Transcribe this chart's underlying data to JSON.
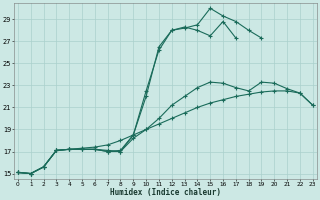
{
  "xlabel": "Humidex (Indice chaleur)",
  "bg_color": "#cce8e4",
  "grid_color": "#aad0cc",
  "line_color": "#1a6b5a",
  "xlim": [
    -0.3,
    23.3
  ],
  "ylim": [
    14.5,
    30.5
  ],
  "xtick_vals": [
    0,
    1,
    2,
    3,
    4,
    5,
    6,
    7,
    8,
    9,
    10,
    11,
    12,
    13,
    14,
    15,
    16,
    17,
    18,
    19,
    20,
    21,
    22,
    23
  ],
  "ytick_vals": [
    15,
    17,
    19,
    21,
    23,
    25,
    27,
    29
  ],
  "series": [
    {
      "x": [
        0,
        1,
        2,
        3,
        4,
        5,
        6,
        7,
        8,
        9,
        10,
        11,
        12,
        13,
        14,
        15,
        16,
        17,
        18,
        19
      ],
      "y": [
        15.1,
        15.0,
        15.6,
        17.1,
        17.2,
        17.2,
        17.2,
        17.1,
        17.0,
        18.5,
        22.0,
        26.5,
        28.0,
        28.2,
        28.5,
        30.0,
        29.3,
        28.8,
        28.0,
        27.3
      ]
    },
    {
      "x": [
        0,
        1,
        2,
        3,
        4,
        5,
        6,
        7,
        8,
        9,
        10,
        11,
        12,
        13,
        14,
        15,
        16,
        17
      ],
      "y": [
        15.1,
        15.0,
        15.6,
        17.1,
        17.2,
        17.2,
        17.2,
        17.0,
        17.1,
        18.5,
        22.5,
        26.2,
        28.0,
        28.3,
        28.0,
        27.5,
        28.8,
        27.3
      ]
    },
    {
      "x": [
        0,
        1,
        2,
        3,
        4,
        5,
        6,
        7,
        8,
        9,
        10,
        11,
        12,
        13,
        14,
        15,
        16,
        17,
        18,
        19,
        20,
        21,
        22,
        23
      ],
      "y": [
        15.1,
        15.0,
        15.6,
        17.1,
        17.2,
        17.2,
        17.2,
        17.0,
        17.0,
        18.2,
        19.0,
        20.0,
        21.2,
        22.0,
        22.8,
        23.3,
        23.2,
        22.8,
        22.5,
        23.3,
        23.2,
        22.7,
        22.3,
        21.2
      ]
    },
    {
      "x": [
        0,
        1,
        2,
        3,
        4,
        5,
        6,
        7,
        8,
        9,
        10,
        11,
        12,
        13,
        14,
        15,
        16,
        17,
        18,
        19,
        20,
        21,
        22,
        23
      ],
      "y": [
        15.1,
        15.0,
        15.6,
        17.1,
        17.2,
        17.3,
        17.4,
        17.6,
        18.0,
        18.5,
        19.0,
        19.5,
        20.0,
        20.5,
        21.0,
        21.4,
        21.7,
        22.0,
        22.2,
        22.4,
        22.5,
        22.5,
        22.3,
        21.2
      ]
    }
  ]
}
